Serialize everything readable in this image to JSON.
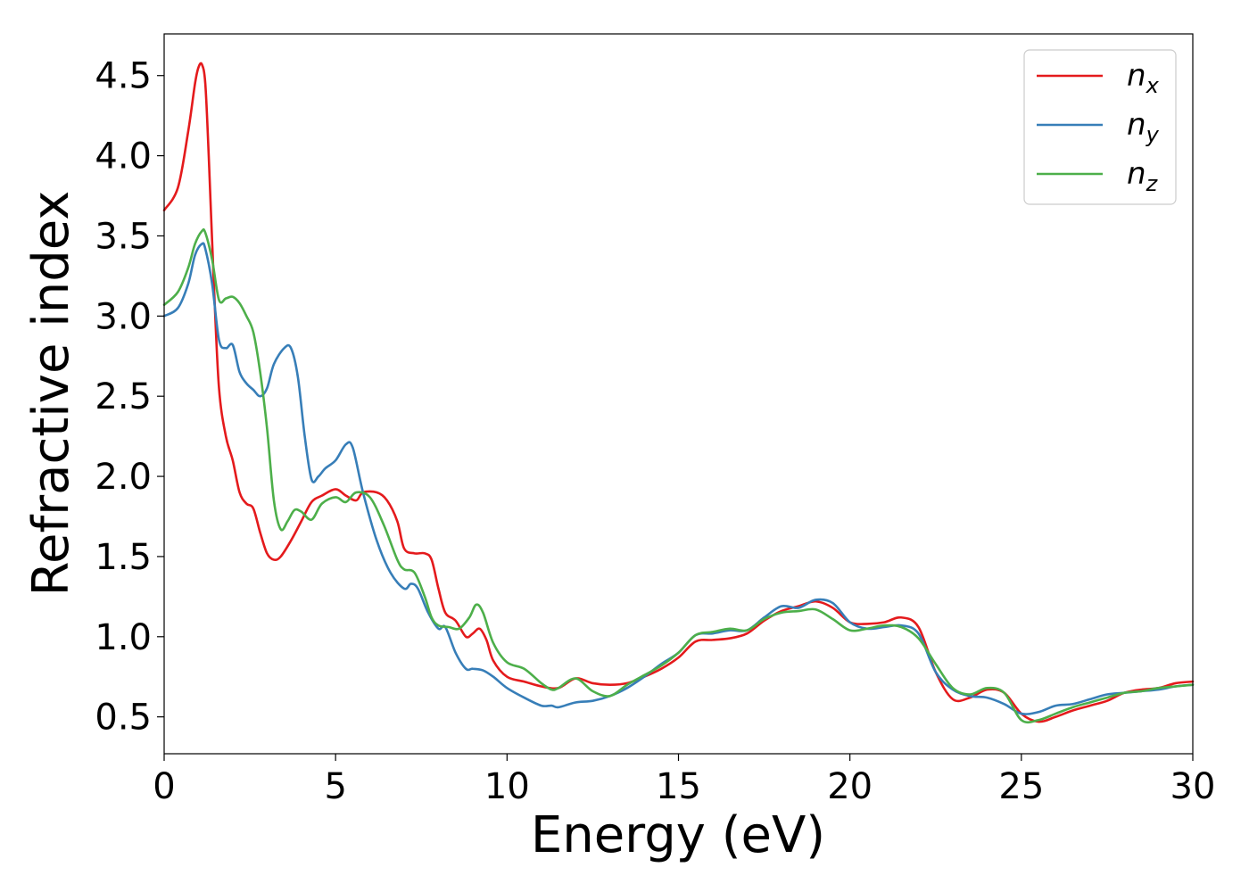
{
  "chart_data": {
    "type": "line",
    "xlabel": "Energy (eV)",
    "ylabel": "Refractive index",
    "xlim": [
      0,
      30
    ],
    "ylim": [
      0.27,
      4.76
    ],
    "xticks": [
      "0",
      "5",
      "10",
      "15",
      "20",
      "25",
      "30"
    ],
    "yticks": [
      "0.5",
      "1.0",
      "1.5",
      "2.0",
      "2.5",
      "3.0",
      "3.5",
      "4.0",
      "4.5"
    ],
    "grid": false,
    "legend_position": "top-right",
    "series": [
      {
        "name": "n",
        "subscript": "x",
        "color": "#e41a1c",
        "x": [
          0,
          0.4,
          0.7,
          0.9,
          1.0,
          1.1,
          1.2,
          1.3,
          1.45,
          1.6,
          1.8,
          2.0,
          2.2,
          2.4,
          2.6,
          2.8,
          3.0,
          3.2,
          3.4,
          3.7,
          4.0,
          4.3,
          4.6,
          5.0,
          5.3,
          5.6,
          5.8,
          6.2,
          6.5,
          6.8,
          7.0,
          7.3,
          7.6,
          7.8,
          8.0,
          8.2,
          8.5,
          8.8,
          9.0,
          9.2,
          9.4,
          9.6,
          10.0,
          10.5,
          11.0,
          11.5,
          12.0,
          12.5,
          13.0,
          13.5,
          14.0,
          14.5,
          15.0,
          15.5,
          16.0,
          16.5,
          17.0,
          17.5,
          18.0,
          18.5,
          19.0,
          19.5,
          20.0,
          20.5,
          21.0,
          21.5,
          22.0,
          22.5,
          23.0,
          23.5,
          24.0,
          24.5,
          25.0,
          25.5,
          26.0,
          26.5,
          27.0,
          27.5,
          28.0,
          28.5,
          29.0,
          29.5,
          30.0
        ],
        "values": [
          3.66,
          3.8,
          4.15,
          4.45,
          4.55,
          4.57,
          4.45,
          4.0,
          3.2,
          2.55,
          2.25,
          2.1,
          1.9,
          1.83,
          1.8,
          1.65,
          1.52,
          1.48,
          1.5,
          1.6,
          1.72,
          1.84,
          1.88,
          1.92,
          1.88,
          1.85,
          1.9,
          1.9,
          1.85,
          1.72,
          1.55,
          1.52,
          1.52,
          1.48,
          1.3,
          1.15,
          1.1,
          1.0,
          1.02,
          1.05,
          0.98,
          0.85,
          0.75,
          0.72,
          0.69,
          0.68,
          0.74,
          0.71,
          0.7,
          0.71,
          0.75,
          0.8,
          0.87,
          0.97,
          0.98,
          0.99,
          1.02,
          1.1,
          1.16,
          1.19,
          1.22,
          1.18,
          1.09,
          1.08,
          1.09,
          1.12,
          1.06,
          0.78,
          0.61,
          0.62,
          0.67,
          0.65,
          0.52,
          0.47,
          0.5,
          0.54,
          0.57,
          0.6,
          0.65,
          0.67,
          0.68,
          0.71,
          0.72
        ]
      },
      {
        "name": "n",
        "subscript": "y",
        "color": "#377eb8",
        "x": [
          0,
          0.4,
          0.7,
          0.9,
          1.1,
          1.2,
          1.4,
          1.6,
          1.8,
          2.0,
          2.2,
          2.4,
          2.6,
          2.8,
          3.0,
          3.2,
          3.5,
          3.7,
          3.9,
          4.1,
          4.3,
          4.5,
          4.7,
          5.0,
          5.3,
          5.5,
          5.8,
          6.2,
          6.6,
          7.0,
          7.2,
          7.4,
          7.7,
          8.0,
          8.2,
          8.5,
          8.8,
          9.0,
          9.3,
          9.6,
          10.0,
          10.5,
          11.0,
          11.3,
          11.5,
          12.0,
          12.5,
          13.0,
          13.5,
          14.0,
          14.5,
          15.0,
          15.5,
          16.0,
          16.5,
          17.0,
          17.5,
          18.0,
          18.5,
          19.0,
          19.5,
          20.0,
          20.5,
          21.0,
          21.5,
          22.0,
          22.5,
          23.0,
          23.5,
          24.0,
          24.5,
          25.0,
          25.5,
          26.0,
          26.5,
          27.0,
          27.5,
          28.0,
          28.5,
          29.0,
          29.5,
          30.0
        ],
        "values": [
          3.0,
          3.05,
          3.2,
          3.38,
          3.45,
          3.42,
          3.2,
          2.85,
          2.8,
          2.82,
          2.65,
          2.58,
          2.54,
          2.5,
          2.55,
          2.7,
          2.8,
          2.8,
          2.62,
          2.25,
          1.98,
          2.0,
          2.05,
          2.1,
          2.2,
          2.18,
          1.9,
          1.6,
          1.4,
          1.3,
          1.33,
          1.3,
          1.15,
          1.05,
          1.06,
          0.9,
          0.8,
          0.8,
          0.79,
          0.75,
          0.68,
          0.62,
          0.57,
          0.57,
          0.56,
          0.59,
          0.6,
          0.63,
          0.68,
          0.75,
          0.83,
          0.9,
          1.01,
          1.02,
          1.04,
          1.04,
          1.12,
          1.19,
          1.18,
          1.23,
          1.21,
          1.09,
          1.05,
          1.06,
          1.07,
          1.02,
          0.78,
          0.67,
          0.63,
          0.62,
          0.58,
          0.52,
          0.53,
          0.57,
          0.58,
          0.61,
          0.64,
          0.65,
          0.66,
          0.67,
          0.69,
          0.7
        ]
      },
      {
        "name": "n",
        "subscript": "z",
        "color": "#4daf4a",
        "x": [
          0,
          0.4,
          0.7,
          0.9,
          1.1,
          1.2,
          1.4,
          1.6,
          1.8,
          2.0,
          2.2,
          2.4,
          2.6,
          2.8,
          3.0,
          3.2,
          3.4,
          3.6,
          3.8,
          4.0,
          4.3,
          4.6,
          5.0,
          5.3,
          5.6,
          6.0,
          6.4,
          6.8,
          7.0,
          7.3,
          7.6,
          7.8,
          8.0,
          8.3,
          8.6,
          8.9,
          9.1,
          9.3,
          9.6,
          10.0,
          10.5,
          11.0,
          11.3,
          11.5,
          12.0,
          12.5,
          13.0,
          13.5,
          14.0,
          14.5,
          15.0,
          15.5,
          16.0,
          16.5,
          17.0,
          17.5,
          18.0,
          18.5,
          19.0,
          19.5,
          20.0,
          20.5,
          21.0,
          21.5,
          22.0,
          22.5,
          23.0,
          23.5,
          24.0,
          24.5,
          25.0,
          25.5,
          26.0,
          26.5,
          27.0,
          27.5,
          28.0,
          28.5,
          29.0,
          29.5,
          30.0
        ],
        "values": [
          3.07,
          3.15,
          3.3,
          3.45,
          3.53,
          3.52,
          3.35,
          3.1,
          3.11,
          3.12,
          3.08,
          3.0,
          2.9,
          2.65,
          2.3,
          1.85,
          1.67,
          1.72,
          1.79,
          1.78,
          1.73,
          1.83,
          1.87,
          1.84,
          1.9,
          1.87,
          1.7,
          1.48,
          1.42,
          1.4,
          1.25,
          1.12,
          1.07,
          1.06,
          1.05,
          1.12,
          1.2,
          1.15,
          0.96,
          0.84,
          0.8,
          0.71,
          0.67,
          0.68,
          0.74,
          0.66,
          0.63,
          0.7,
          0.76,
          0.82,
          0.9,
          1.01,
          1.03,
          1.05,
          1.04,
          1.11,
          1.15,
          1.16,
          1.17,
          1.11,
          1.04,
          1.05,
          1.07,
          1.06,
          0.99,
          0.83,
          0.68,
          0.64,
          0.68,
          0.65,
          0.48,
          0.48,
          0.52,
          0.56,
          0.59,
          0.62,
          0.65,
          0.66,
          0.68,
          0.69,
          0.7
        ]
      }
    ]
  }
}
